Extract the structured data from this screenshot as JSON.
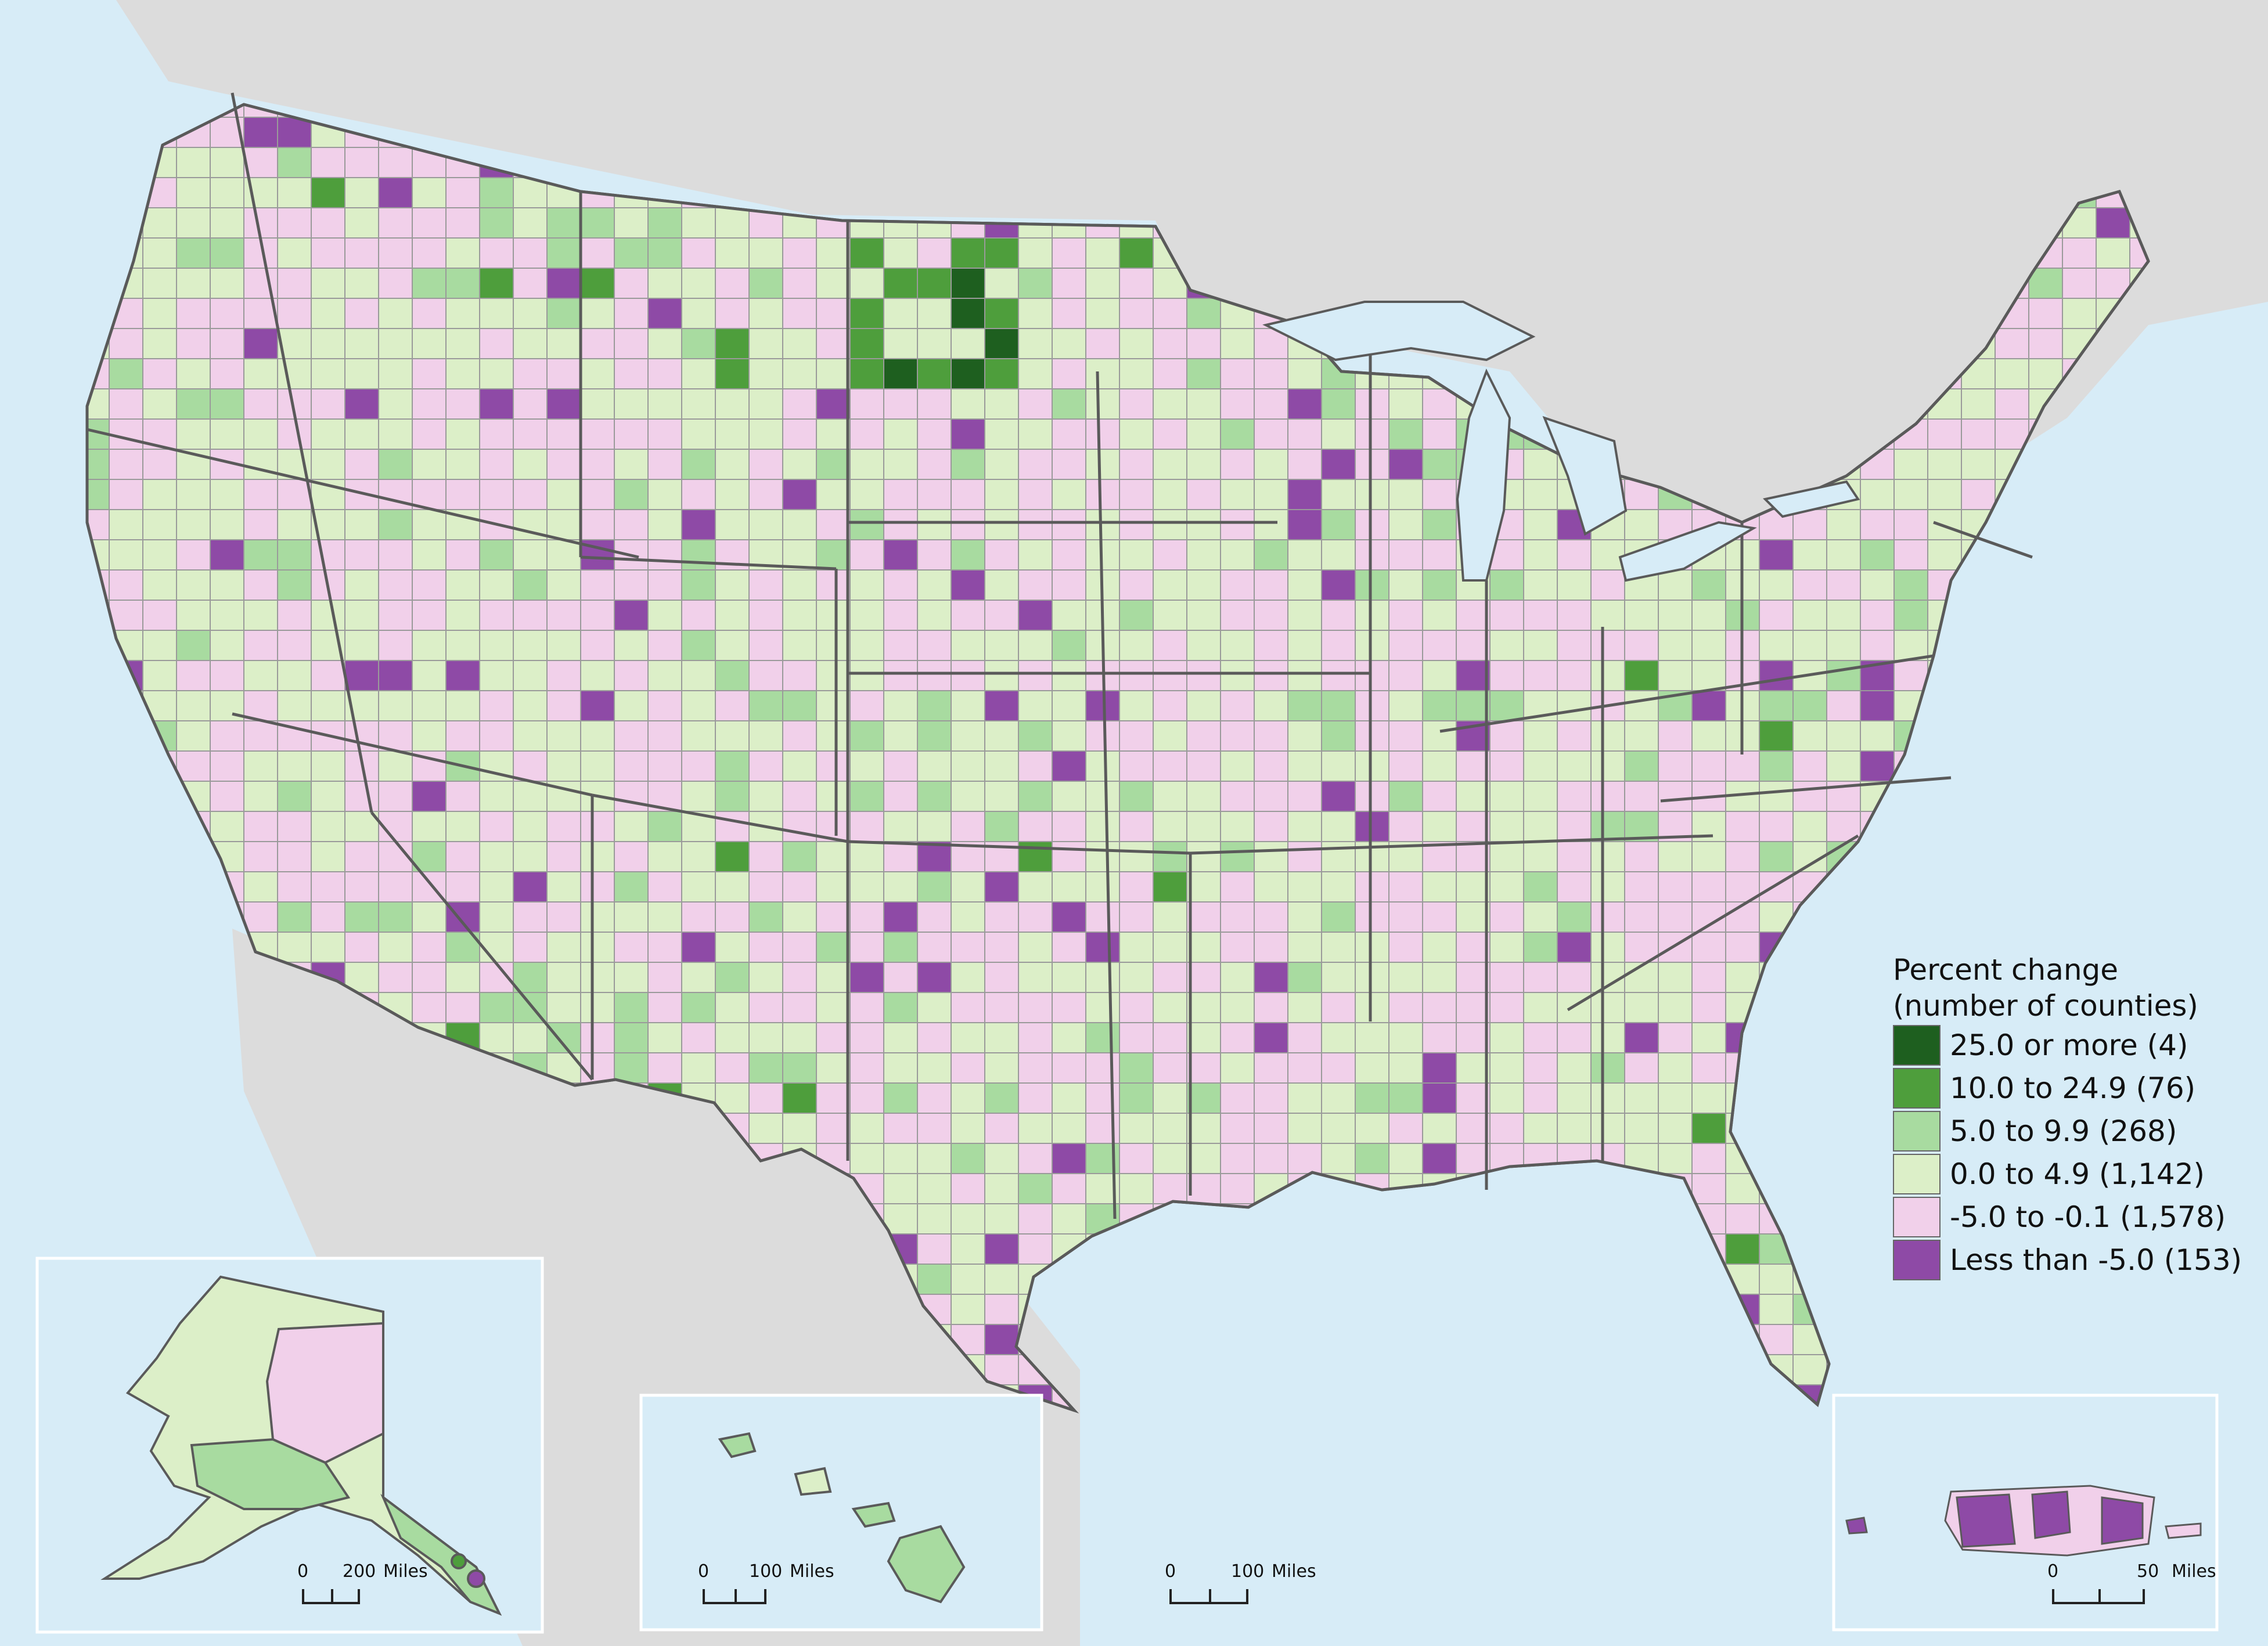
{
  "legend": {
    "title_line1": "Percent change",
    "title_line2": "(number of counties)",
    "items": [
      {
        "label": "25.0 or more (4)",
        "color": "#1e5f1f"
      },
      {
        "label": "10.0 to 24.9 (76)",
        "color": "#4e9e3c"
      },
      {
        "label": "5.0 to 9.9 (268)",
        "color": "#a8dba0"
      },
      {
        "label": "0.0 to 4.9 (1,142)",
        "color": "#dcefc8"
      },
      {
        "label": "-5.0 to -0.1 (1,578)",
        "color": "#f1d0ea"
      },
      {
        "label": "Less than -5.0 (153)",
        "color": "#8e4aa6"
      }
    ]
  },
  "scales": {
    "alaska": {
      "zero": "0",
      "value": "200",
      "unit": "Miles"
    },
    "hawaii": {
      "zero": "0",
      "value": "100",
      "unit": "Miles"
    },
    "lower48": {
      "zero": "0",
      "value": "100",
      "unit": "Miles"
    },
    "puerto_rico": {
      "zero": "0",
      "value": "50",
      "unit": "Miles"
    }
  },
  "colors": {
    "water": "#d7ecf7",
    "land_outside": "#dcdcdc",
    "state_border": "#5a5a5a",
    "county_border": "#9a9a9a"
  }
}
